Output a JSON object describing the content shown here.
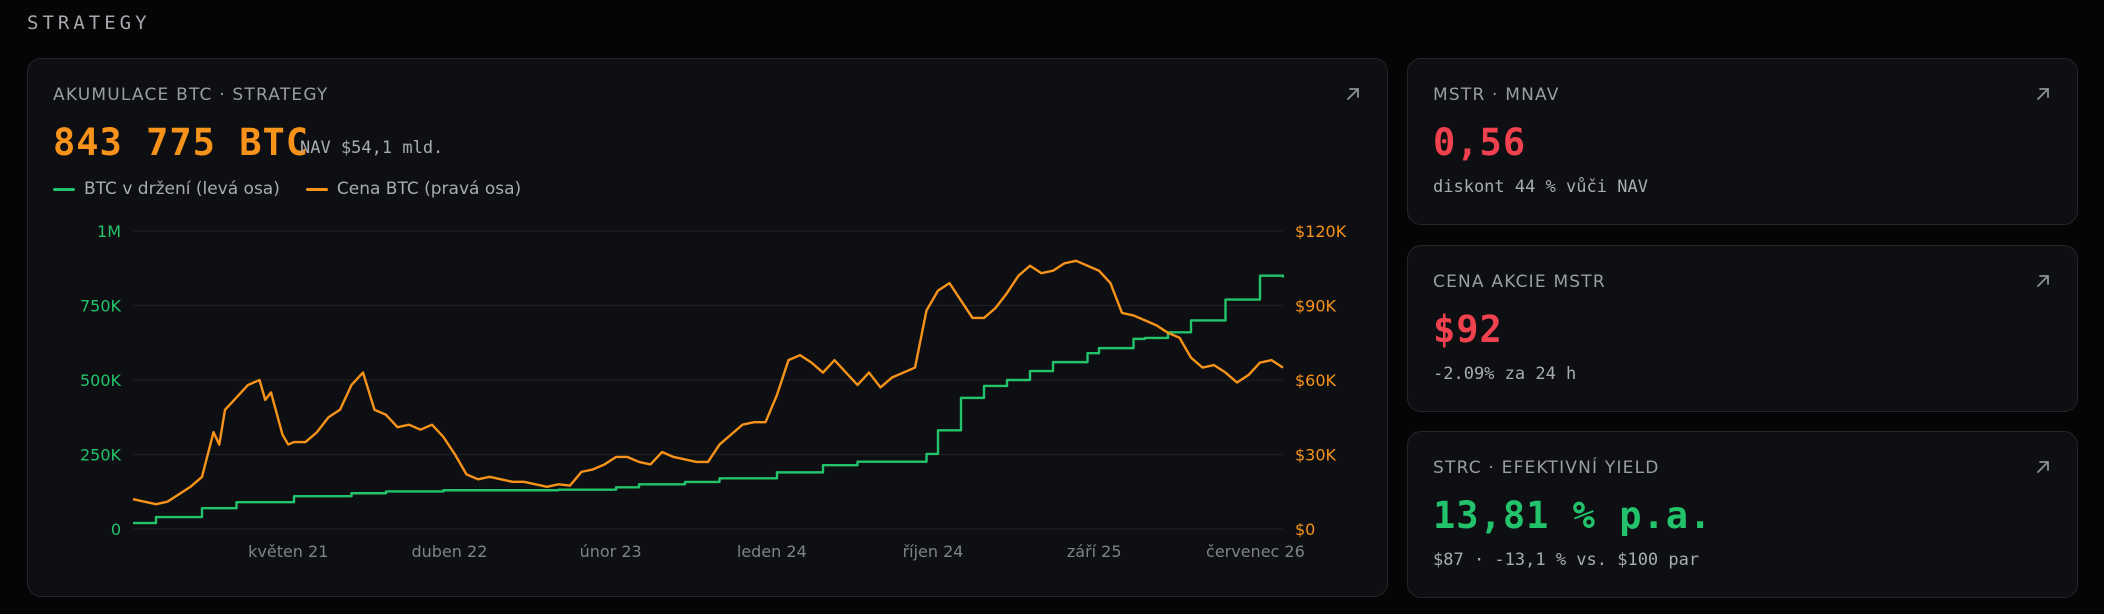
{
  "section_title": "STRATEGY",
  "colors": {
    "orange": "#f7931a",
    "green": "#22c36b",
    "red": "#f0414e",
    "grid": "#1f2126"
  },
  "main_card": {
    "label": "AKUMULACE BTC · STRATEGY",
    "value": "843 775 BTC",
    "nav_note": "NAV $54,1 mld.",
    "icon": "arrow-up-right-icon",
    "legend": [
      {
        "label": "BTC v držení (levá osa)",
        "color": "#22c36b"
      },
      {
        "label": "Cena BTC (pravá osa)",
        "color": "#f7931a"
      }
    ]
  },
  "chart_data": {
    "type": "line",
    "x_tick_labels": [
      "květen 21",
      "duben 22",
      "únor 23",
      "leden 24",
      "říjen 24",
      "září 25",
      "červenec 26"
    ],
    "left_axis": {
      "ticks": [
        "0",
        "250K",
        "500K",
        "750K",
        "1M"
      ],
      "ylim": [
        0,
        1000000
      ]
    },
    "right_axis": {
      "ticks": [
        "$0",
        "$30K",
        "$60K",
        "$90K",
        "$120K"
      ],
      "ylim": [
        0,
        120000
      ]
    },
    "grid": true,
    "legend_placement": "top-left",
    "series": [
      {
        "name": "BTC v držení (levá osa)",
        "axis": "left",
        "step": true,
        "x": [
          0,
          0.02,
          0.06,
          0.09,
          0.14,
          0.19,
          0.22,
          0.27,
          0.31,
          0.37,
          0.42,
          0.44,
          0.48,
          0.51,
          0.56,
          0.6,
          0.63,
          0.69,
          0.7,
          0.72,
          0.74,
          0.76,
          0.78,
          0.8,
          0.83,
          0.84,
          0.87,
          0.88,
          0.9,
          0.92,
          0.95,
          0.98,
          1.0
        ],
        "values": [
          20000,
          40000,
          70000,
          90000,
          110000,
          120000,
          126000,
          130000,
          130000,
          132000,
          140000,
          150000,
          158000,
          170000,
          190000,
          214000,
          226000,
          252000,
          331000,
          440000,
          480000,
          500000,
          530000,
          560000,
          590000,
          607000,
          638000,
          641000,
          660000,
          700000,
          770000,
          850000,
          843775
        ]
      },
      {
        "name": "Cena BTC (pravá osa)",
        "axis": "right",
        "x": [
          0,
          0.01,
          0.02,
          0.03,
          0.04,
          0.05,
          0.06,
          0.07,
          0.075,
          0.08,
          0.09,
          0.1,
          0.11,
          0.115,
          0.12,
          0.13,
          0.135,
          0.14,
          0.15,
          0.16,
          0.17,
          0.18,
          0.19,
          0.2,
          0.21,
          0.22,
          0.23,
          0.24,
          0.25,
          0.26,
          0.27,
          0.28,
          0.29,
          0.3,
          0.31,
          0.32,
          0.33,
          0.34,
          0.35,
          0.36,
          0.37,
          0.38,
          0.39,
          0.4,
          0.41,
          0.42,
          0.43,
          0.44,
          0.45,
          0.46,
          0.47,
          0.48,
          0.49,
          0.5,
          0.51,
          0.52,
          0.53,
          0.54,
          0.55,
          0.56,
          0.57,
          0.58,
          0.59,
          0.6,
          0.61,
          0.62,
          0.63,
          0.64,
          0.65,
          0.66,
          0.67,
          0.68,
          0.69,
          0.7,
          0.71,
          0.72,
          0.73,
          0.74,
          0.75,
          0.76,
          0.77,
          0.78,
          0.79,
          0.8,
          0.81,
          0.82,
          0.83,
          0.84,
          0.85,
          0.86,
          0.87,
          0.88,
          0.89,
          0.9,
          0.91,
          0.92,
          0.93,
          0.94,
          0.95,
          0.96,
          0.97,
          0.98,
          0.99,
          1.0
        ],
        "values": [
          12000,
          11000,
          10000,
          11000,
          14000,
          17000,
          21000,
          39000,
          34000,
          48000,
          53000,
          58000,
          60000,
          52000,
          55000,
          38000,
          34000,
          35000,
          35000,
          39000,
          45000,
          48000,
          58000,
          63000,
          48000,
          46000,
          41000,
          42000,
          40000,
          42000,
          37000,
          30000,
          22000,
          20000,
          21000,
          20000,
          19000,
          19000,
          18000,
          17000,
          18000,
          17500,
          23000,
          24000,
          26000,
          29000,
          29000,
          27000,
          26000,
          31000,
          29000,
          28000,
          27000,
          27000,
          34000,
          38000,
          42000,
          43000,
          43000,
          54000,
          68000,
          70000,
          67000,
          63000,
          68000,
          63000,
          58000,
          63000,
          57000,
          61000,
          63000,
          65000,
          88000,
          96000,
          99000,
          92000,
          85000,
          85000,
          89000,
          95000,
          102000,
          106000,
          103000,
          104000,
          107000,
          108000,
          106000,
          104000,
          99000,
          87000,
          86000,
          84000,
          82000,
          79000,
          77000,
          69000,
          65000,
          66000,
          63000,
          59000,
          62000,
          67000,
          68000,
          65000
        ]
      }
    ]
  },
  "cards": [
    {
      "label": "MSTR · MNAV",
      "value": "0,56",
      "sub": "diskont 44 % vůči NAV",
      "color": "#f0414e",
      "icon": "arrow-up-right-icon"
    },
    {
      "label": "CENA AKCIE MSTR",
      "value": "$92",
      "sub": "-2.09% za 24 h",
      "color": "#f0414e",
      "icon": "arrow-up-right-icon"
    },
    {
      "label": "STRC · EFEKTIVNÍ YIELD",
      "value": "13,81 % p.a.",
      "sub": "$87 · -13,1 % vs. $100 par",
      "color": "#22c36b",
      "icon": "arrow-up-right-icon"
    }
  ]
}
